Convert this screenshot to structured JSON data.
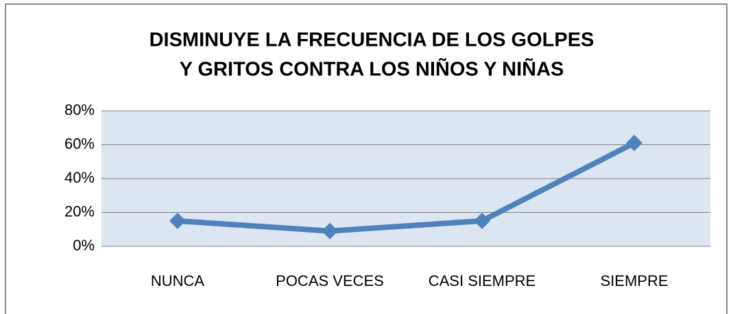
{
  "chart_data": {
    "type": "line",
    "title": [
      "DISMINUYE LA FRECUENCIA DE LOS GOLPES",
      "Y GRITOS CONTRA LOS NIÑOS Y NIÑAS"
    ],
    "categories": [
      "NUNCA",
      "POCAS VECES",
      "CASI SIEMPRE",
      "SIEMPRE"
    ],
    "series": [
      {
        "name": "Series 1",
        "color": "#4f81bd",
        "values": [
          15,
          9,
          15,
          61
        ]
      }
    ],
    "ylim": [
      0,
      80
    ],
    "yticks": [
      {
        "value": 0,
        "label": "0%"
      },
      {
        "value": 20,
        "label": "20%"
      },
      {
        "value": 40,
        "label": "40%"
      },
      {
        "value": 60,
        "label": "60%"
      },
      {
        "value": 80,
        "label": "80%"
      }
    ],
    "grid": true
  }
}
